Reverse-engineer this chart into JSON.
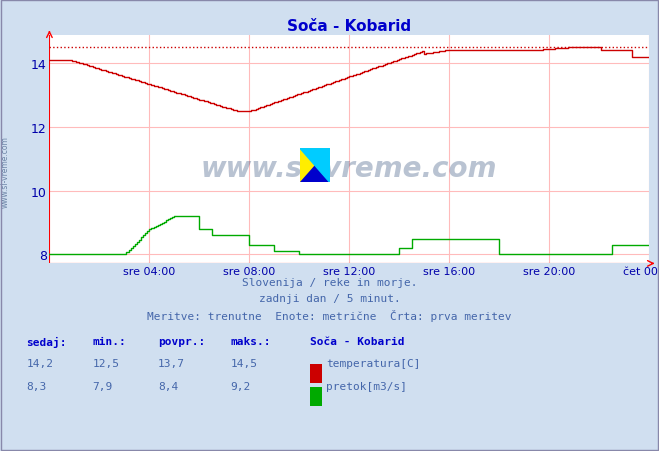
{
  "title": "Soča - Kobarid",
  "title_color": "#0000cc",
  "bg_color": "#d0dff0",
  "plot_bg_color": "#ffffff",
  "grid_color": "#ffbbbb",
  "x_tick_labels": [
    "sre 04:00",
    "sre 08:00",
    "sre 12:00",
    "sre 16:00",
    "sre 20:00",
    "čet 00:00"
  ],
  "x_tick_positions": [
    48,
    96,
    144,
    192,
    240,
    288
  ],
  "total_points": 289,
  "ylim": [
    7.72,
    14.88
  ],
  "yticks": [
    8,
    10,
    12,
    14
  ],
  "tick_color": "#0000aa",
  "temp_color": "#cc0000",
  "flow_color": "#00aa00",
  "max_temp": 14.5,
  "subtitle_lines": [
    "Slovenija / reke in morje.",
    "zadnji dan / 5 minut.",
    "Meritve: trenutne  Enote: metrične  Črta: prva meritev"
  ],
  "subtitle_color": "#4466aa",
  "legend_title": "Soča - Kobarid",
  "legend_title_color": "#0000cc",
  "table_headers": [
    "sedaj:",
    "min.:",
    "povpr.:",
    "maks.:"
  ],
  "table_temp": [
    "14,2",
    "12,5",
    "13,7",
    "14,5"
  ],
  "table_flow": [
    "8,3",
    "7,9",
    "8,4",
    "9,2"
  ],
  "watermark_text": "www.si-vreme.com",
  "watermark_color": "#1a3a6a",
  "sidebar_text": "www.si-vreme.com"
}
